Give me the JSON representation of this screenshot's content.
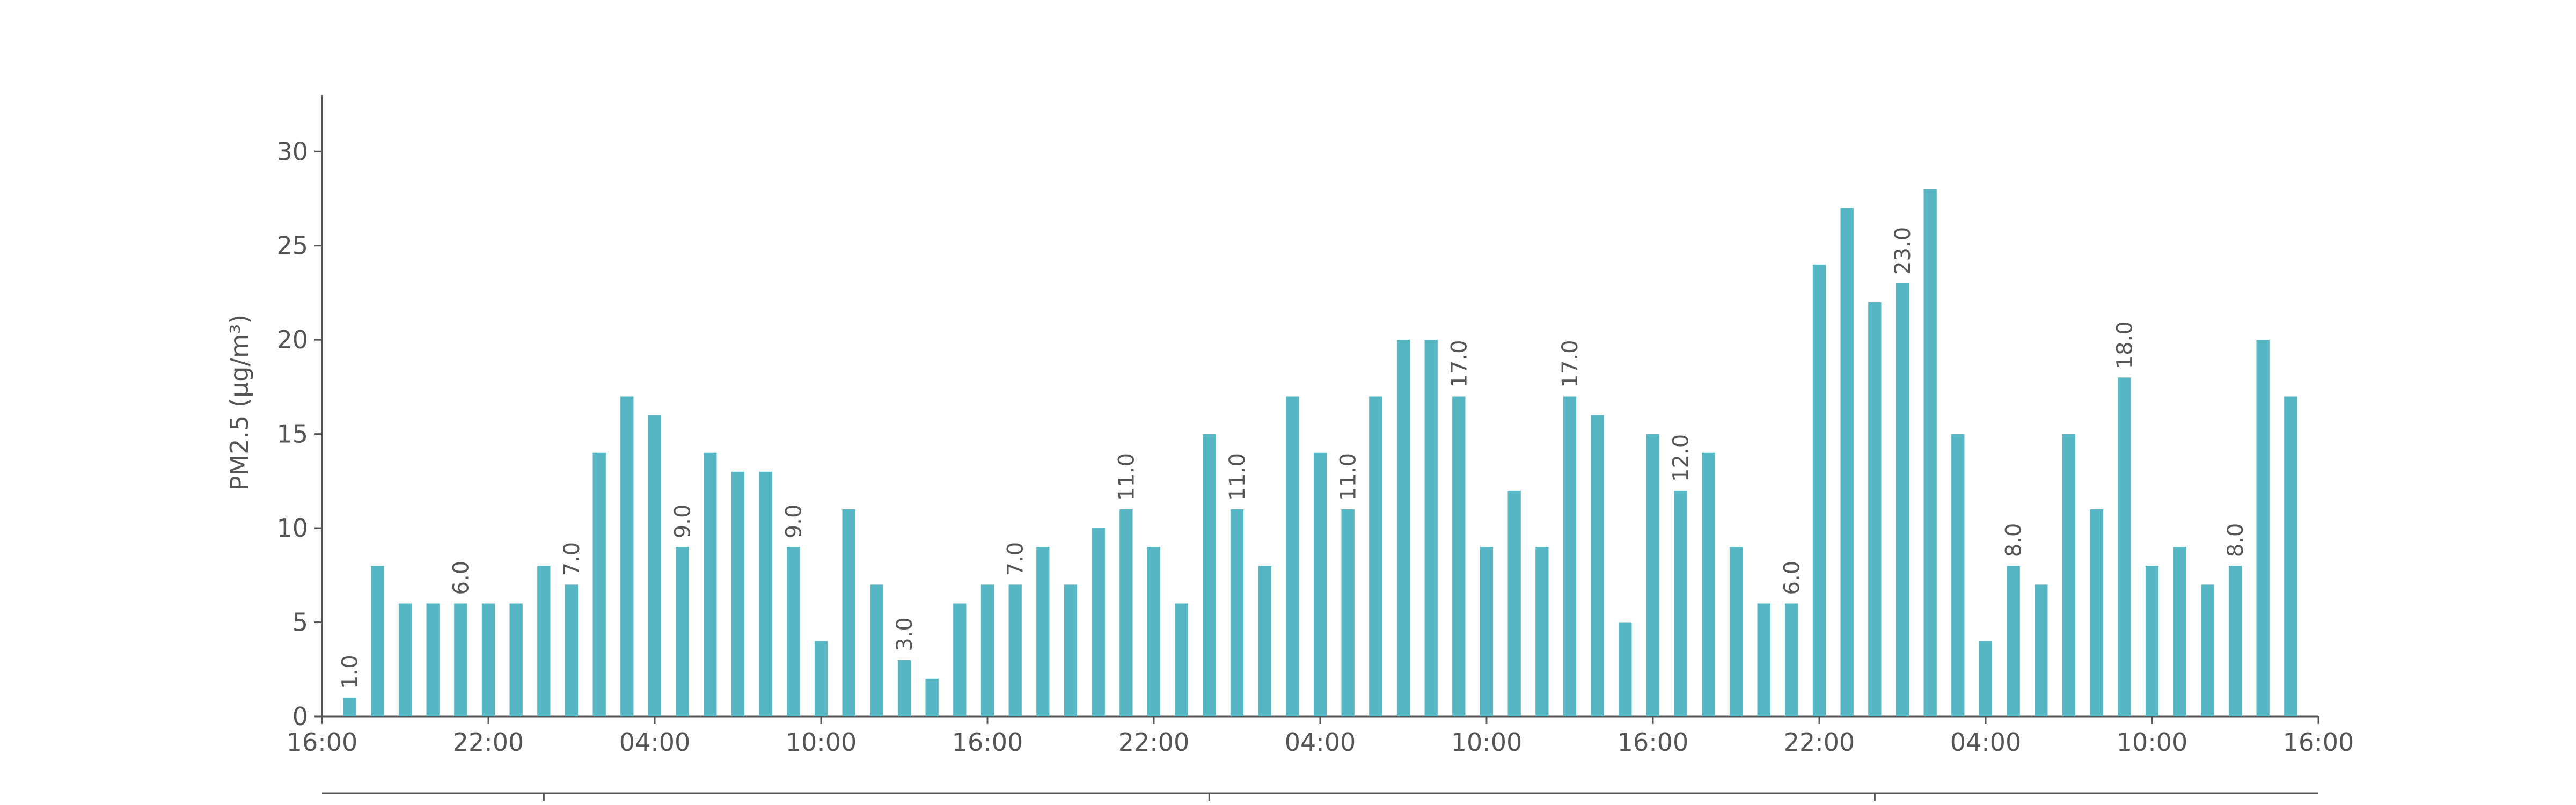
{
  "chart_data": {
    "type": "bar",
    "y_label": "PM2.5 (μg/m³)",
    "x": [
      1,
      2,
      3,
      4,
      5,
      6,
      7,
      8,
      9,
      10,
      11,
      12,
      13,
      14,
      15,
      16,
      17,
      18,
      19,
      20,
      21,
      22,
      23,
      24,
      25,
      26,
      27,
      28,
      29,
      30,
      31,
      32,
      33,
      34,
      35,
      36,
      37,
      38,
      39,
      40,
      41,
      42,
      43,
      44,
      45,
      46,
      47,
      48,
      49,
      50,
      51,
      52,
      53,
      54,
      55,
      56,
      57,
      58,
      59,
      60,
      61,
      62,
      63,
      64,
      65,
      66,
      67,
      68,
      69,
      70,
      71
    ],
    "values": [
      1,
      8,
      6,
      6,
      6,
      6,
      6,
      8,
      7,
      14,
      17,
      16,
      9,
      14,
      13,
      13,
      9,
      4,
      11,
      7,
      3,
      2,
      6,
      7,
      7,
      9,
      7,
      10,
      11,
      9,
      6,
      15,
      11,
      8,
      17,
      14,
      11,
      17,
      20,
      20,
      17,
      9,
      12,
      9,
      17,
      16,
      5,
      15,
      12,
      14,
      9,
      6,
      6,
      24,
      27,
      22,
      23,
      28,
      15,
      4,
      8,
      7,
      15,
      11,
      18,
      8,
      9,
      7,
      8,
      20,
      17
    ],
    "value_labels": [
      "1.0",
      null,
      null,
      null,
      "6.0",
      null,
      null,
      null,
      "7.0",
      null,
      null,
      null,
      "9.0",
      null,
      null,
      null,
      "9.0",
      null,
      null,
      null,
      "3.0",
      null,
      null,
      null,
      "7.0",
      null,
      null,
      null,
      "11.0",
      null,
      null,
      null,
      "11.0",
      null,
      null,
      null,
      "11.0",
      null,
      null,
      null,
      "17.0",
      null,
      null,
      null,
      "17.0",
      null,
      null,
      null,
      "12.0",
      null,
      null,
      null,
      "6.0",
      null,
      null,
      null,
      "23.0",
      null,
      null,
      null,
      "8.0",
      null,
      null,
      null,
      "18.0",
      null,
      null,
      null,
      "8.0",
      null,
      null
    ],
    "color": "#56b6c4",
    "xlim": [
      0,
      72
    ],
    "xticks": [
      {
        "value": 0,
        "label": "16:00"
      },
      {
        "value": 6,
        "label": "22:00"
      },
      {
        "value": 12,
        "label": "04:00"
      },
      {
        "value": 18,
        "label": "10:00"
      },
      {
        "value": 24,
        "label": "16:00"
      },
      {
        "value": 30,
        "label": "22:00"
      },
      {
        "value": 36,
        "label": "04:00"
      },
      {
        "value": 42,
        "label": "10:00"
      },
      {
        "value": 48,
        "label": "16:00"
      },
      {
        "value": 54,
        "label": "22:00"
      },
      {
        "value": 60,
        "label": "04:00"
      },
      {
        "value": 66,
        "label": "10:00"
      },
      {
        "value": 72,
        "label": "16:00"
      }
    ],
    "x2ticks": [
      8,
      32,
      56
    ],
    "ylim": [
      0,
      33
    ],
    "yticks": [
      0,
      5,
      10,
      15,
      20,
      25,
      30
    ]
  }
}
